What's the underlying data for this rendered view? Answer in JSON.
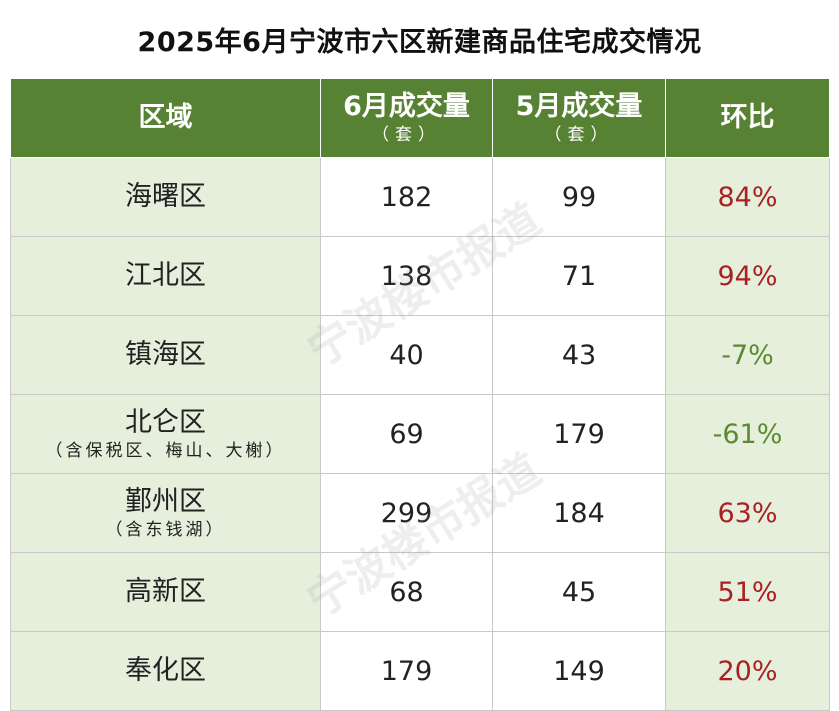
{
  "title": "2025年6月宁波市六区新建商品住宅成交情况",
  "header": {
    "region": "区域",
    "june": "6月成交量",
    "june_unit": "（套）",
    "may": "5月成交量",
    "may_unit": "（套）",
    "ratio": "环比"
  },
  "rows": [
    {
      "name": "海曙区",
      "note": "",
      "june": "182",
      "may": "99",
      "ratio": "84%",
      "trend": "up"
    },
    {
      "name": "江北区",
      "note": "",
      "june": "138",
      "may": "71",
      "ratio": "94%",
      "trend": "up"
    },
    {
      "name": "镇海区",
      "note": "",
      "june": "40",
      "may": "43",
      "ratio": "-7%",
      "trend": "down"
    },
    {
      "name": "北仑区",
      "note": "（含保税区、梅山、大榭）",
      "june": "69",
      "may": "179",
      "ratio": "-61%",
      "trend": "down"
    },
    {
      "name": "鄞州区",
      "note": "（含东钱湖）",
      "june": "299",
      "may": "184",
      "ratio": "63%",
      "trend": "up"
    },
    {
      "name": "高新区",
      "note": "",
      "june": "68",
      "may": "45",
      "ratio": "51%",
      "trend": "up"
    },
    {
      "name": "奉化区",
      "note": "",
      "june": "179",
      "may": "149",
      "ratio": "20%",
      "trend": "up"
    }
  ],
  "watermark": "宁波楼市报道",
  "colors": {
    "header_bg": "#578233",
    "positive": "#a92222",
    "negative": "#5a8a32",
    "shade": "#e6efdb"
  }
}
